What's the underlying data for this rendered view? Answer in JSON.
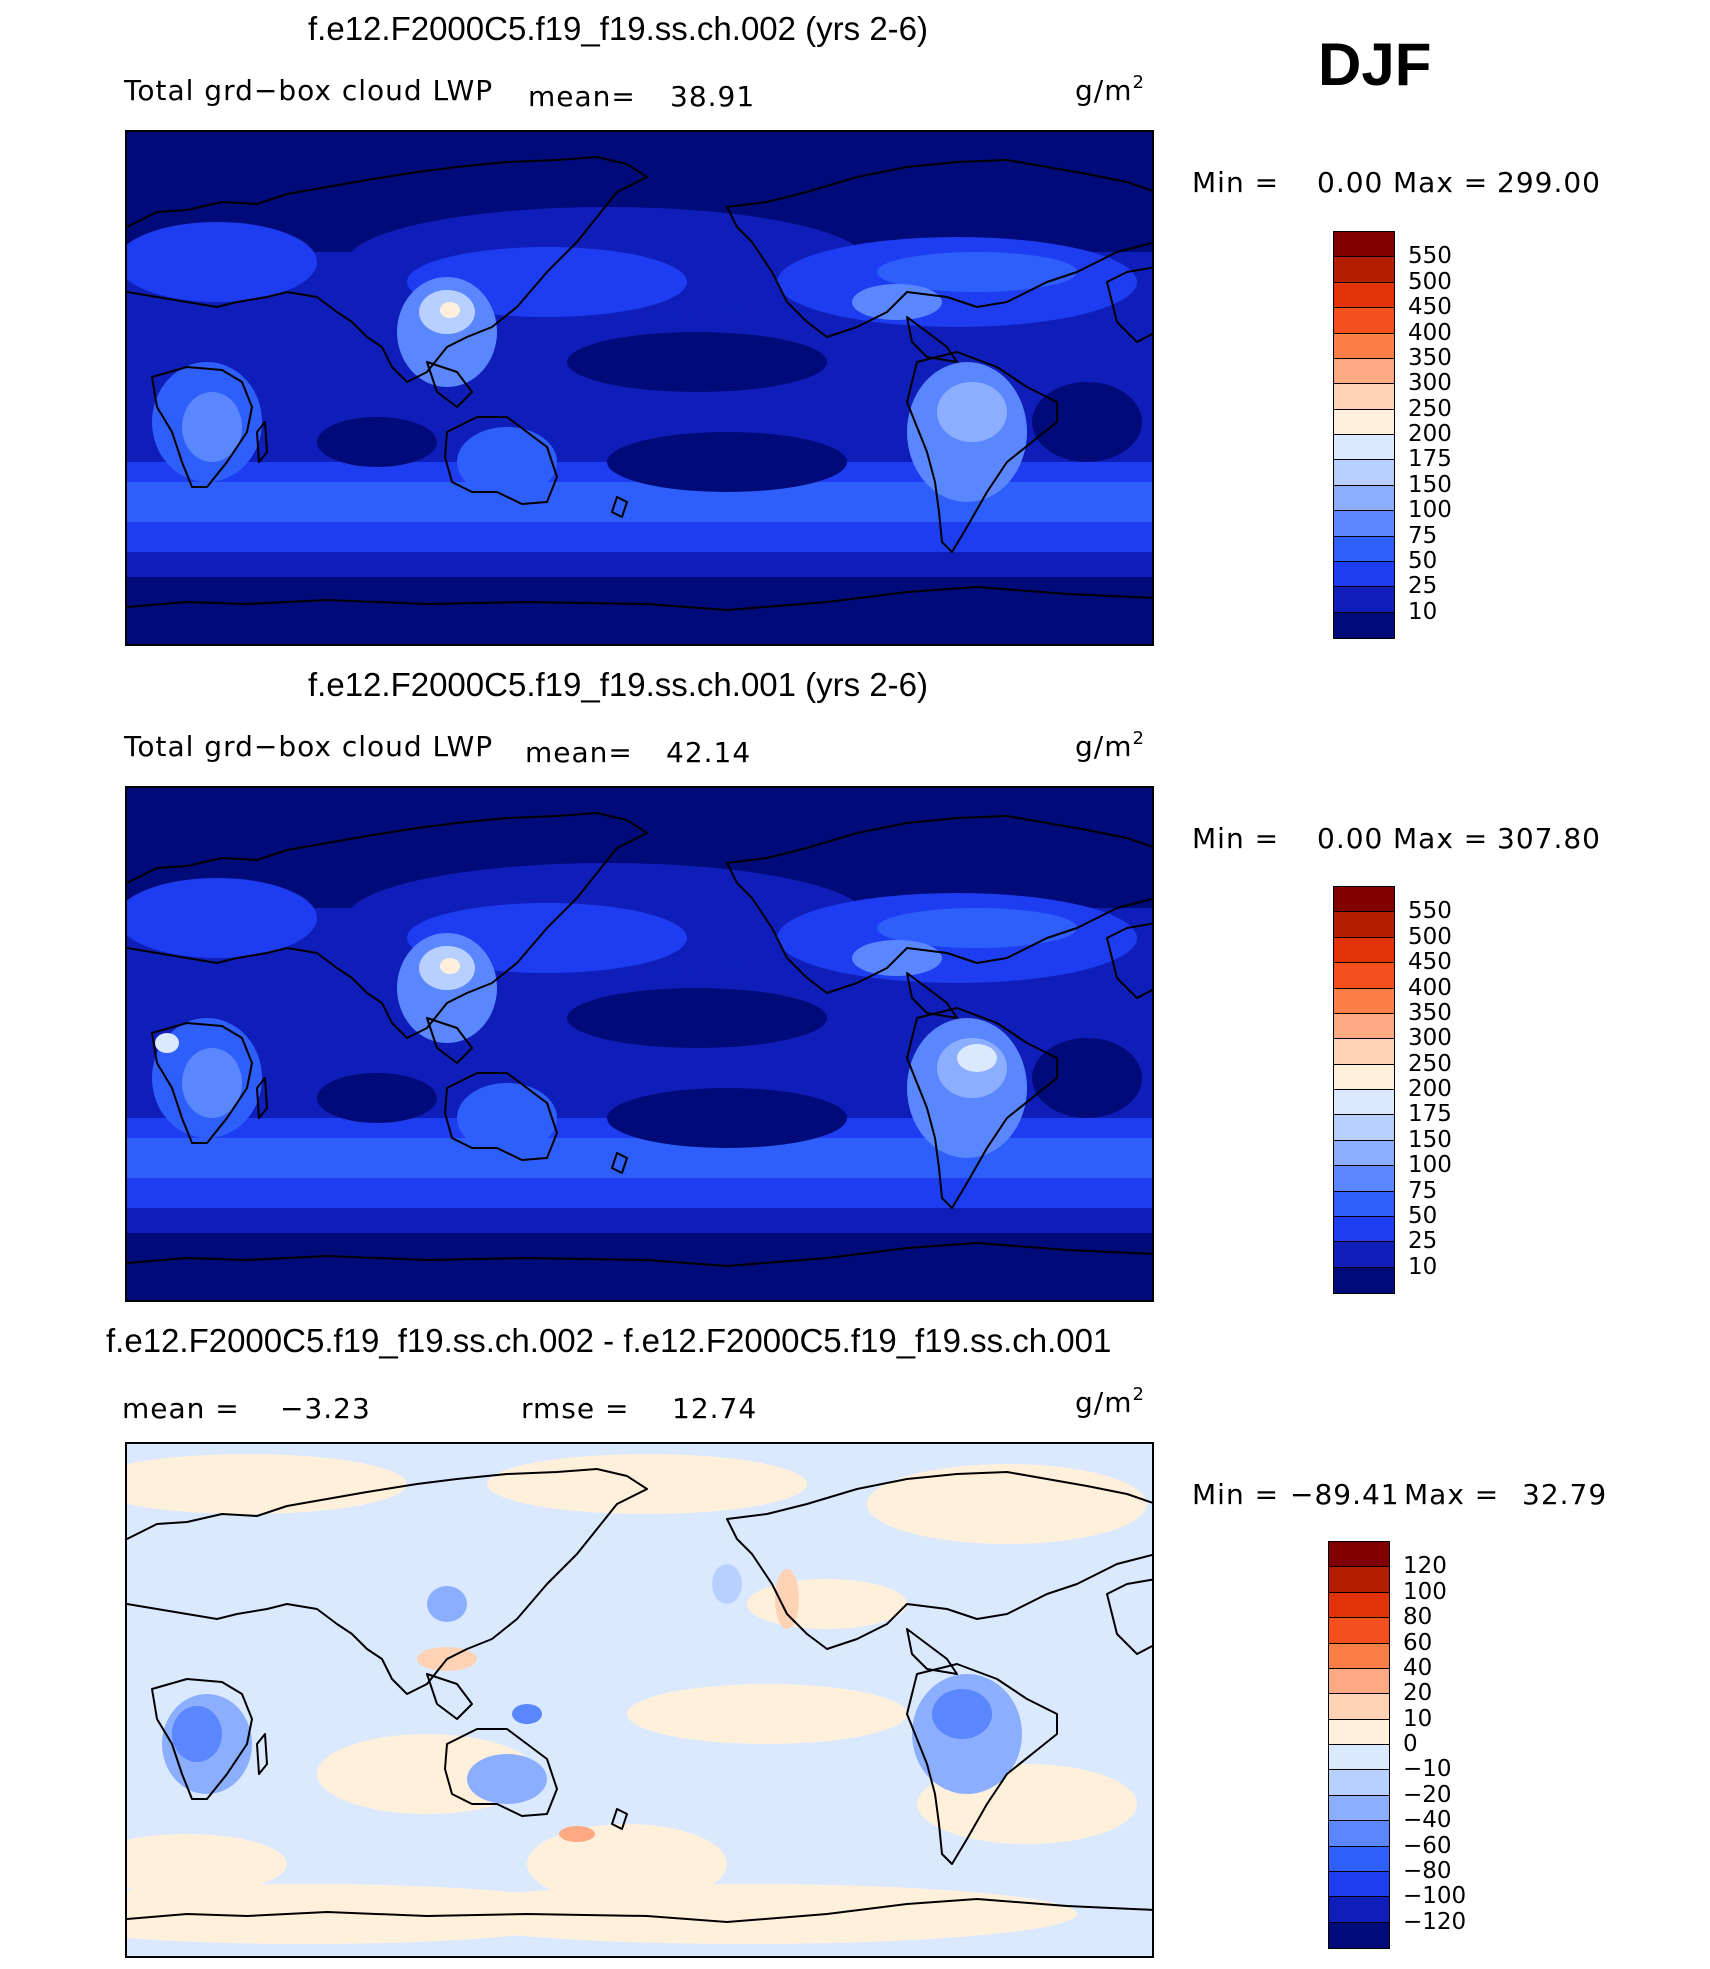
{
  "season": "DJF",
  "panels": [
    {
      "title": "f.e12.F2000C5.f19_f19.ss.ch.002 (yrs 2-6)",
      "left_label": "Total grd−box cloud LWP",
      "stat_label": "mean=",
      "stat_value": "38.91",
      "units_base": "g/m",
      "units_exp": "2",
      "minmax": {
        "min_label": "Min =",
        "min": "0.00",
        "max_label": "Max =",
        "max": "299.00"
      },
      "colorbar": {
        "labels": [
          "550",
          "500",
          "450",
          "400",
          "350",
          "300",
          "250",
          "200",
          "175",
          "150",
          "100",
          "75",
          "50",
          "25",
          "10"
        ],
        "colors": [
          "#800000",
          "#b41e00",
          "#e1320a",
          "#f4501e",
          "#fa7f46",
          "#fdaa82",
          "#fed2b4",
          "#fff0dc",
          "#dbe9ff",
          "#b8d0ff",
          "#8caefe",
          "#5a87fd",
          "#2f5ffb",
          "#1e3cf0",
          "#0f1eb9",
          "#000a78"
        ]
      },
      "map_kind": "lwp1"
    },
    {
      "title": "f.e12.F2000C5.f19_f19.ss.ch.001 (yrs 2-6)",
      "left_label": "Total grd−box cloud LWP",
      "stat_label": "mean=",
      "stat_value": "42.14",
      "units_base": "g/m",
      "units_exp": "2",
      "minmax": {
        "min_label": "Min =",
        "min": "0.00",
        "max_label": "Max =",
        "max": "307.80"
      },
      "colorbar": {
        "labels": [
          "550",
          "500",
          "450",
          "400",
          "350",
          "300",
          "250",
          "200",
          "175",
          "150",
          "100",
          "75",
          "50",
          "25",
          "10"
        ],
        "colors": [
          "#800000",
          "#b41e00",
          "#e1320a",
          "#f4501e",
          "#fa7f46",
          "#fdaa82",
          "#fed2b4",
          "#fff0dc",
          "#dbe9ff",
          "#b8d0ff",
          "#8caefe",
          "#5a87fd",
          "#2f5ffb",
          "#1e3cf0",
          "#0f1eb9",
          "#000a78"
        ]
      },
      "map_kind": "lwp2"
    },
    {
      "title": "f.e12.F2000C5.f19_f19.ss.ch.002 - f.e12.F2000C5.f19_f19.ss.ch.001",
      "left_label": "mean =",
      "stat_label": "",
      "stat_value": "−3.23",
      "rmse_label": "rmse =",
      "rmse_value": "12.74",
      "units_base": "g/m",
      "units_exp": "2",
      "minmax": {
        "min_label": "Min =",
        "min": "−89.41",
        "max_label": "Max =",
        "max": "32.79"
      },
      "colorbar": {
        "labels": [
          "120",
          "100",
          "80",
          "60",
          "40",
          "20",
          "10",
          "0",
          "−10",
          "−20",
          "−40",
          "−60",
          "−80",
          "−100",
          "−120"
        ],
        "colors": [
          "#800000",
          "#b41e00",
          "#e1320a",
          "#f4501e",
          "#fa7f46",
          "#fdaa82",
          "#fed2b4",
          "#fff0dc",
          "#dbe9ff",
          "#b8d0ff",
          "#8caefe",
          "#5a87fd",
          "#2f5ffb",
          "#1e3cf0",
          "#0f1eb9",
          "#000a78"
        ]
      },
      "map_kind": "diff"
    }
  ]
}
